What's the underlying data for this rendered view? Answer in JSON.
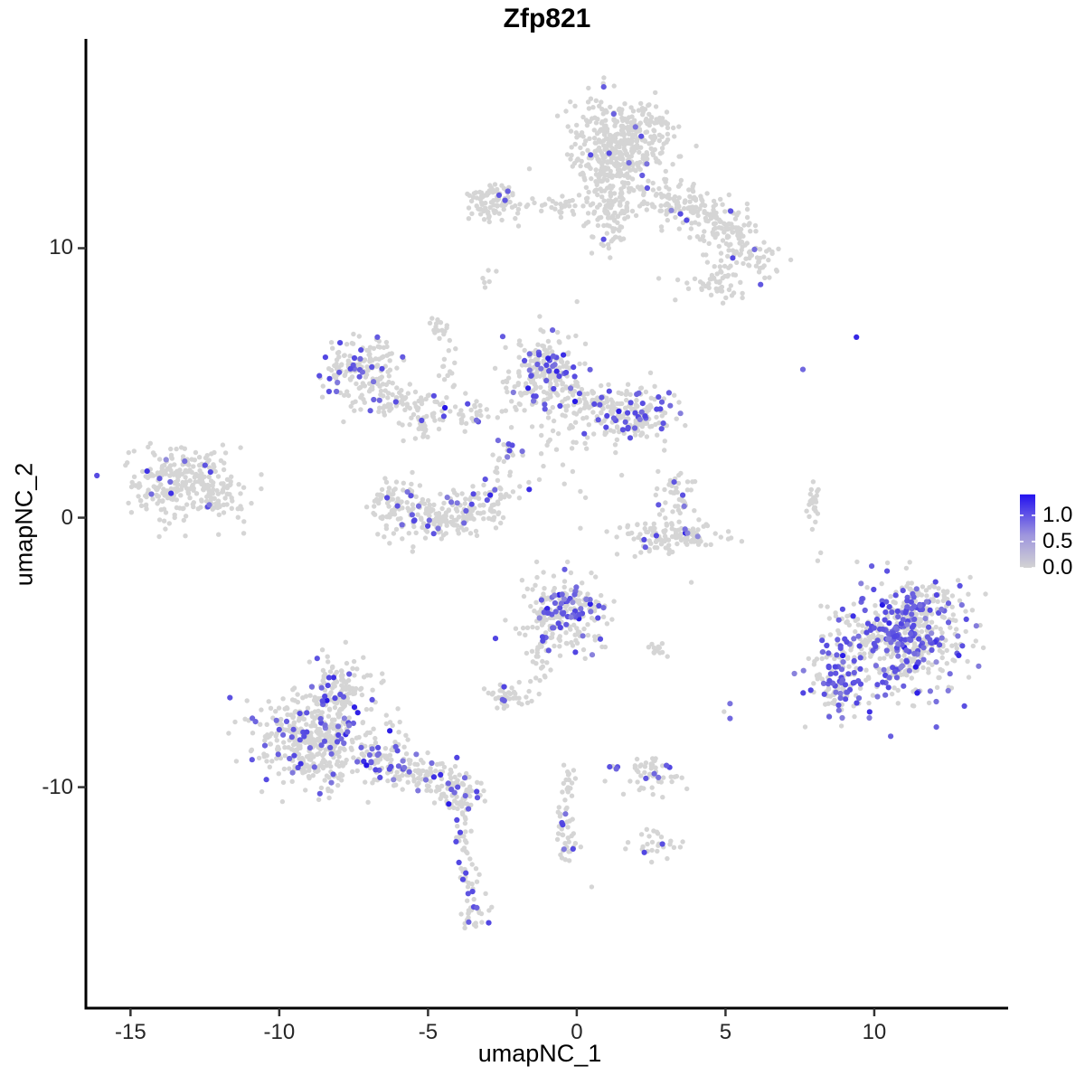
{
  "chart_data": {
    "type": "scatter",
    "subtype": "umap-feature-plot",
    "title": "Zfp821",
    "xlabel": "umapNC_1",
    "ylabel": "umapNC_2",
    "x_domain": [
      -16.5,
      14.5
    ],
    "y_domain": [
      -18.2,
      17.7
    ],
    "x_ticks": [
      {
        "v": -15,
        "label": "-15"
      },
      {
        "v": -10,
        "label": "-10"
      },
      {
        "v": -5,
        "label": "-5"
      },
      {
        "v": 0,
        "label": "0"
      },
      {
        "v": 5,
        "label": "5"
      },
      {
        "v": 10,
        "label": "10"
      }
    ],
    "y_ticks": [
      {
        "v": 10,
        "label": "10"
      },
      {
        "v": 0,
        "label": "0"
      },
      {
        "v": -10,
        "label": "-10"
      }
    ],
    "legend": {
      "ticks": [
        {
          "v": 1.0,
          "label": "1.0"
        },
        {
          "v": 0.5,
          "label": "0.5"
        },
        {
          "v": 0.0,
          "label": "0.0"
        }
      ],
      "bar_max": 1.4,
      "low_color": "#d3d3d3",
      "high_color": "#2312ef"
    },
    "colors": {
      "point_gray": "#d5d5d5",
      "low": "#d3d3d3",
      "high": "#2010e8",
      "axis": "#000000"
    },
    "representation": "gaussian-cluster-summary",
    "cluster_fields": [
      "cx",
      "cy",
      "sx",
      "sy",
      "n",
      "expressing_frac",
      "rot_deg"
    ],
    "clusters": [
      [
        1.55,
        14.1,
        0.85,
        0.75,
        330,
        0.012,
        0
      ],
      [
        1.15,
        12.9,
        0.6,
        0.5,
        120,
        0.015,
        0
      ],
      [
        1.15,
        11.1,
        0.35,
        0.6,
        80,
        0.02,
        0
      ],
      [
        -0.3,
        11.6,
        0.9,
        0.22,
        45,
        0.02,
        0
      ],
      [
        3.6,
        11.6,
        1.0,
        0.45,
        150,
        0.02,
        -18
      ],
      [
        4.9,
        10.6,
        0.55,
        0.4,
        70,
        0.03,
        0
      ],
      [
        5.75,
        9.7,
        0.55,
        0.35,
        60,
        0.035,
        0
      ],
      [
        4.55,
        8.7,
        0.5,
        0.35,
        45,
        0.03,
        0
      ],
      [
        -2.75,
        11.75,
        0.5,
        0.33,
        90,
        0.05,
        0
      ],
      [
        -2.85,
        8.85,
        0.18,
        0.18,
        6,
        0,
        0
      ],
      [
        -4.6,
        7.0,
        0.25,
        0.25,
        16,
        0,
        0
      ],
      [
        -4.3,
        5.6,
        0.12,
        0.5,
        14,
        0,
        0
      ],
      [
        -7.2,
        5.35,
        0.75,
        0.7,
        170,
        0.13,
        0
      ],
      [
        -6.1,
        4.3,
        0.4,
        0.35,
        40,
        0.1,
        0
      ],
      [
        -4.4,
        3.9,
        0.75,
        0.4,
        60,
        0.12,
        0
      ],
      [
        -5.3,
        3.3,
        0.3,
        0.25,
        22,
        0.05,
        0
      ],
      [
        -1.05,
        5.1,
        0.7,
        0.85,
        250,
        0.18,
        0
      ],
      [
        0.45,
        4.2,
        0.5,
        0.4,
        55,
        0.1,
        0
      ],
      [
        1.95,
        3.85,
        0.75,
        0.55,
        170,
        0.17,
        0
      ],
      [
        -2.35,
        2.45,
        0.22,
        0.2,
        16,
        0.5,
        0
      ],
      [
        -2.5,
        1.2,
        0.25,
        0.5,
        22,
        0.1,
        0
      ],
      [
        -0.6,
        2.1,
        1.1,
        0.7,
        22,
        0.04,
        0
      ],
      [
        -6.0,
        0.55,
        0.5,
        0.45,
        80,
        0.1,
        0
      ],
      [
        -4.8,
        -0.15,
        0.7,
        0.4,
        110,
        0.13,
        0
      ],
      [
        -3.5,
        0.45,
        0.5,
        0.45,
        75,
        0.12,
        0
      ],
      [
        -13.45,
        1.2,
        0.8,
        0.7,
        250,
        0.035,
        0
      ],
      [
        -11.9,
        0.7,
        0.45,
        0.4,
        55,
        0.02,
        0
      ],
      [
        3.3,
        0.85,
        0.35,
        0.4,
        40,
        0.1,
        0
      ],
      [
        2.9,
        -0.65,
        0.95,
        0.35,
        125,
        0.045,
        0
      ],
      [
        7.95,
        0.3,
        0.1,
        0.5,
        22,
        0,
        0
      ],
      [
        -0.45,
        -3.6,
        0.75,
        0.75,
        230,
        0.25,
        0
      ],
      [
        -1.35,
        -5.3,
        0.2,
        0.5,
        22,
        0.12,
        0
      ],
      [
        -2.4,
        -6.65,
        0.35,
        0.3,
        42,
        0.13,
        0
      ],
      [
        2.75,
        -4.9,
        0.2,
        0.15,
        12,
        0.2,
        0
      ],
      [
        10.9,
        -4.6,
        1.1,
        1.0,
        520,
        0.32,
        0
      ],
      [
        8.65,
        -5.9,
        0.45,
        0.85,
        110,
        0.3,
        0
      ],
      [
        11.6,
        -3.2,
        0.7,
        0.4,
        80,
        0.28,
        0
      ],
      [
        -8.8,
        -8.3,
        1.05,
        0.8,
        430,
        0.16,
        0
      ],
      [
        -7.9,
        -6.4,
        0.6,
        0.65,
        130,
        0.14,
        0
      ],
      [
        -5.7,
        -9.3,
        0.9,
        0.4,
        140,
        0.13,
        -18
      ],
      [
        -4.05,
        -10.3,
        0.45,
        0.35,
        70,
        0.13,
        0
      ],
      [
        -3.9,
        -11.7,
        0.15,
        0.45,
        18,
        0.1,
        0
      ],
      [
        -3.65,
        -13.2,
        0.15,
        0.5,
        22,
        0.14,
        0
      ],
      [
        -3.55,
        -14.7,
        0.3,
        0.4,
        30,
        0.2,
        0
      ],
      [
        -0.25,
        -9.6,
        0.12,
        0.45,
        16,
        0,
        0
      ],
      [
        -0.4,
        -11.2,
        0.15,
        0.5,
        20,
        0.08,
        0
      ],
      [
        -0.3,
        -12.3,
        0.2,
        0.3,
        18,
        0.15,
        0
      ],
      [
        2.7,
        -12.15,
        0.45,
        0.25,
        28,
        0.07,
        0
      ],
      [
        2.3,
        -9.55,
        0.55,
        0.3,
        55,
        0.07,
        0
      ]
    ],
    "single_fields": [
      "x",
      "y",
      "value_t"
    ],
    "singles": [
      [
        9.4,
        6.7,
        0.88
      ],
      [
        7.6,
        5.5,
        0.55
      ],
      [
        0.5,
        -13.7,
        0
      ],
      [
        5.15,
        -6.9,
        0.5
      ],
      [
        5.15,
        -7.45,
        0.55
      ],
      [
        4.95,
        -7.2,
        0
      ],
      [
        3.85,
        -2.4,
        0
      ],
      [
        8.1,
        -1.6,
        0
      ],
      [
        8.2,
        -1.3,
        0
      ],
      [
        -1.6,
        1.05,
        0.85
      ],
      [
        6.3,
        9.35,
        0
      ],
      [
        -11.9,
        2.7,
        0
      ],
      [
        -11.3,
        2.6,
        0
      ]
    ]
  }
}
